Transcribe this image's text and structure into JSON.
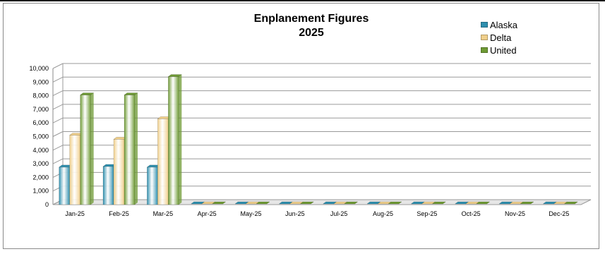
{
  "chart_data": {
    "type": "bar",
    "title": "Enplanement Figures",
    "subtitle": "2025",
    "categories": [
      "Jan-25",
      "Feb-25",
      "Mar-25",
      "Apr-25",
      "May-25",
      "Jun-25",
      "Jul-25",
      "Aug-25",
      "Sep-25",
      "Oct-25",
      "Nov-25",
      "Dec-25"
    ],
    "series": [
      {
        "name": "Alaska",
        "color": "#2e8fae",
        "values": [
          2750,
          2800,
          2750,
          0,
          0,
          0,
          0,
          0,
          0,
          0,
          0,
          0
        ]
      },
      {
        "name": "Delta",
        "color": "#f0cf8a",
        "values": [
          5100,
          4800,
          6300,
          0,
          0,
          0,
          0,
          0,
          0,
          0,
          0,
          0
        ]
      },
      {
        "name": "United",
        "color": "#6e9a34",
        "values": [
          8050,
          8050,
          9400,
          0,
          0,
          0,
          0,
          0,
          0,
          0,
          0,
          0
        ]
      }
    ],
    "yticks": [
      "0",
      "1,000",
      "2,000",
      "3,000",
      "4,000",
      "5,000",
      "6,000",
      "7,000",
      "8,000",
      "9,000",
      "10,000"
    ],
    "ylim": [
      0,
      10000
    ],
    "xlabel": "",
    "ylabel": "",
    "grid": true,
    "legend_position": "top-right",
    "style": "3d-column"
  }
}
